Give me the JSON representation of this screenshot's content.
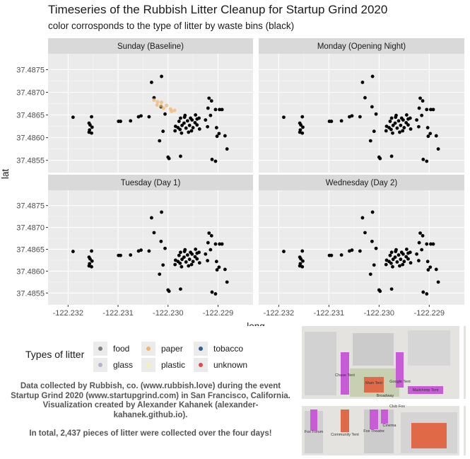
{
  "title": "Timeseries of the Rubbish Litter Cleanup for Startup Grind 2020",
  "subtitle": "color corrosponds to the type of litter by waste bins (black)",
  "legend": {
    "title": "Types of litter",
    "items": [
      {
        "label": "food",
        "color": "#808080"
      },
      {
        "label": "paper",
        "color": "#f2b36b"
      },
      {
        "label": "tobacco",
        "color": "#2c5f9e"
      },
      {
        "label": "glass",
        "color": "#b3b3d1"
      },
      {
        "label": "plastic",
        "color": "#f7f0a8"
      },
      {
        "label": "unknown",
        "color": "#e2474f"
      }
    ]
  },
  "caption": {
    "text": "Data collected by Rubbish, co. (www.rubbish.love) during the event Startup Grind 2020 (www.startupgrind.com) in San Francisco, California. Visualization created by Alexander Kahanek (alexander-kahanek.github.io).",
    "total": "In total, 2,437 pieces of litter were collected over the four days!"
  },
  "map": {
    "labels": [
      "Chase Tent",
      "Main Tent",
      "Google Tent",
      "Mailchimp Tent",
      "Broadway",
      "Club Fox",
      "Fox Forum",
      "Community Tent",
      "Fox Theatre",
      "Cinema"
    ]
  },
  "chart_data": {
    "type": "scatter",
    "xlabel": "long",
    "ylabel": "lat",
    "xlim": [
      -122.2324,
      -122.2283
    ],
    "ylim": [
      37.48523,
      37.48785
    ],
    "xticks": [
      -122.232,
      -122.231,
      -122.23,
      -122.229
    ],
    "xtick_labels": [
      "-122.232",
      "-122.231",
      "-122.230",
      "-122.229"
    ],
    "yticks": [
      37.4855,
      37.486,
      37.4865,
      37.487,
      37.4875
    ],
    "ytick_labels": [
      "37.4855",
      "37.4860",
      "37.4865",
      "37.4870",
      "37.4875"
    ],
    "bin_color": "#000000",
    "facets": [
      "Sunday (Baseline)",
      "Monday (Opening Night)",
      "Tuesday (Day 1)",
      "Wednesday (Day 2)"
    ],
    "bins": [
      [
        -122.2319,
        37.48645
      ],
      [
        -122.23153,
        37.48646
      ],
      [
        -122.23158,
        37.48632
      ],
      [
        -122.23156,
        37.48628
      ],
      [
        -122.23152,
        37.48623
      ],
      [
        -122.23157,
        37.48617
      ],
      [
        -122.23158,
        37.48612
      ],
      [
        -122.23153,
        37.4861
      ],
      [
        -122.23099,
        37.48636
      ],
      [
        -122.23095,
        37.48636
      ],
      [
        -122.23075,
        37.48637
      ],
      [
        -122.23059,
        37.48646
      ],
      [
        -122.23054,
        37.48648
      ],
      [
        -122.23033,
        37.48722
      ],
      [
        -122.23013,
        37.48735
      ],
      [
        -122.23028,
        37.48688
      ],
      [
        -122.23038,
        37.48646
      ],
      [
        -122.23014,
        37.48668
      ],
      [
        -122.23006,
        37.48652
      ],
      [
        -122.2301,
        37.48614
      ],
      [
        -122.23017,
        37.48593
      ],
      [
        -122.23,
        37.48557
      ],
      [
        -122.22998,
        37.48554
      ],
      [
        -122.22975,
        37.48559
      ],
      [
        -122.22985,
        37.48625
      ],
      [
        -122.2298,
        37.48622
      ],
      [
        -122.22976,
        37.48618
      ],
      [
        -122.22972,
        37.48627
      ],
      [
        -122.22968,
        37.48632
      ],
      [
        -122.22964,
        37.48621
      ],
      [
        -122.22961,
        37.48637
      ],
      [
        -122.22957,
        37.48627
      ],
      [
        -122.22955,
        37.48643
      ],
      [
        -122.2295,
        37.48622
      ],
      [
        -122.22946,
        37.48633
      ],
      [
        -122.22942,
        37.48641
      ],
      [
        -122.22975,
        37.48643
      ],
      [
        -122.22978,
        37.48636
      ],
      [
        -122.22967,
        37.48645
      ],
      [
        -122.22953,
        37.48615
      ],
      [
        -122.22945,
        37.4865
      ],
      [
        -122.22938,
        37.48643
      ],
      [
        -122.22959,
        37.48612
      ],
      [
        -122.22973,
        37.4861
      ],
      [
        -122.22966,
        37.48649
      ],
      [
        -122.22952,
        37.48639
      ],
      [
        -122.22986,
        37.48615
      ],
      [
        -122.22942,
        37.48628
      ],
      [
        -122.22925,
        37.48639
      ],
      [
        -122.22921,
        37.48624
      ],
      [
        -122.22937,
        37.48619
      ],
      [
        -122.22918,
        37.48687
      ],
      [
        -122.22913,
        37.48681
      ],
      [
        -122.2292,
        37.48665
      ],
      [
        -122.22905,
        37.48662
      ],
      [
        -122.22897,
        37.48662
      ],
      [
        -122.22892,
        37.48662
      ],
      [
        -122.22915,
        37.48649
      ],
      [
        -122.22903,
        37.48622
      ],
      [
        -122.22898,
        37.48609
      ],
      [
        -122.22902,
        37.48603
      ],
      [
        -122.22886,
        37.48604
      ],
      [
        -122.22912,
        37.48552
      ],
      [
        -122.22905,
        37.48548
      ],
      [
        -122.22882,
        37.48575
      ]
    ],
    "litter": {
      "Sunday (Baseline)": [
        {
          "type": "paper",
          "points": [
            [
              -122.23028,
              37.48683
            ],
            [
              -122.23021,
              37.48679
            ],
            [
              -122.23022,
              37.48672
            ],
            [
              -122.23014,
              37.4867
            ],
            [
              -122.23009,
              37.48665
            ],
            [
              -122.22995,
              37.48663
            ],
            [
              -122.22987,
              37.4866
            ],
            [
              -122.22993,
              37.48658
            ],
            [
              -122.23013,
              37.48678
            ],
            [
              -122.23003,
              37.48671
            ]
          ]
        }
      ],
      "Monday (Opening Night)": [],
      "Tuesday (Day 1)": [],
      "Wednesday (Day 2)": []
    }
  }
}
